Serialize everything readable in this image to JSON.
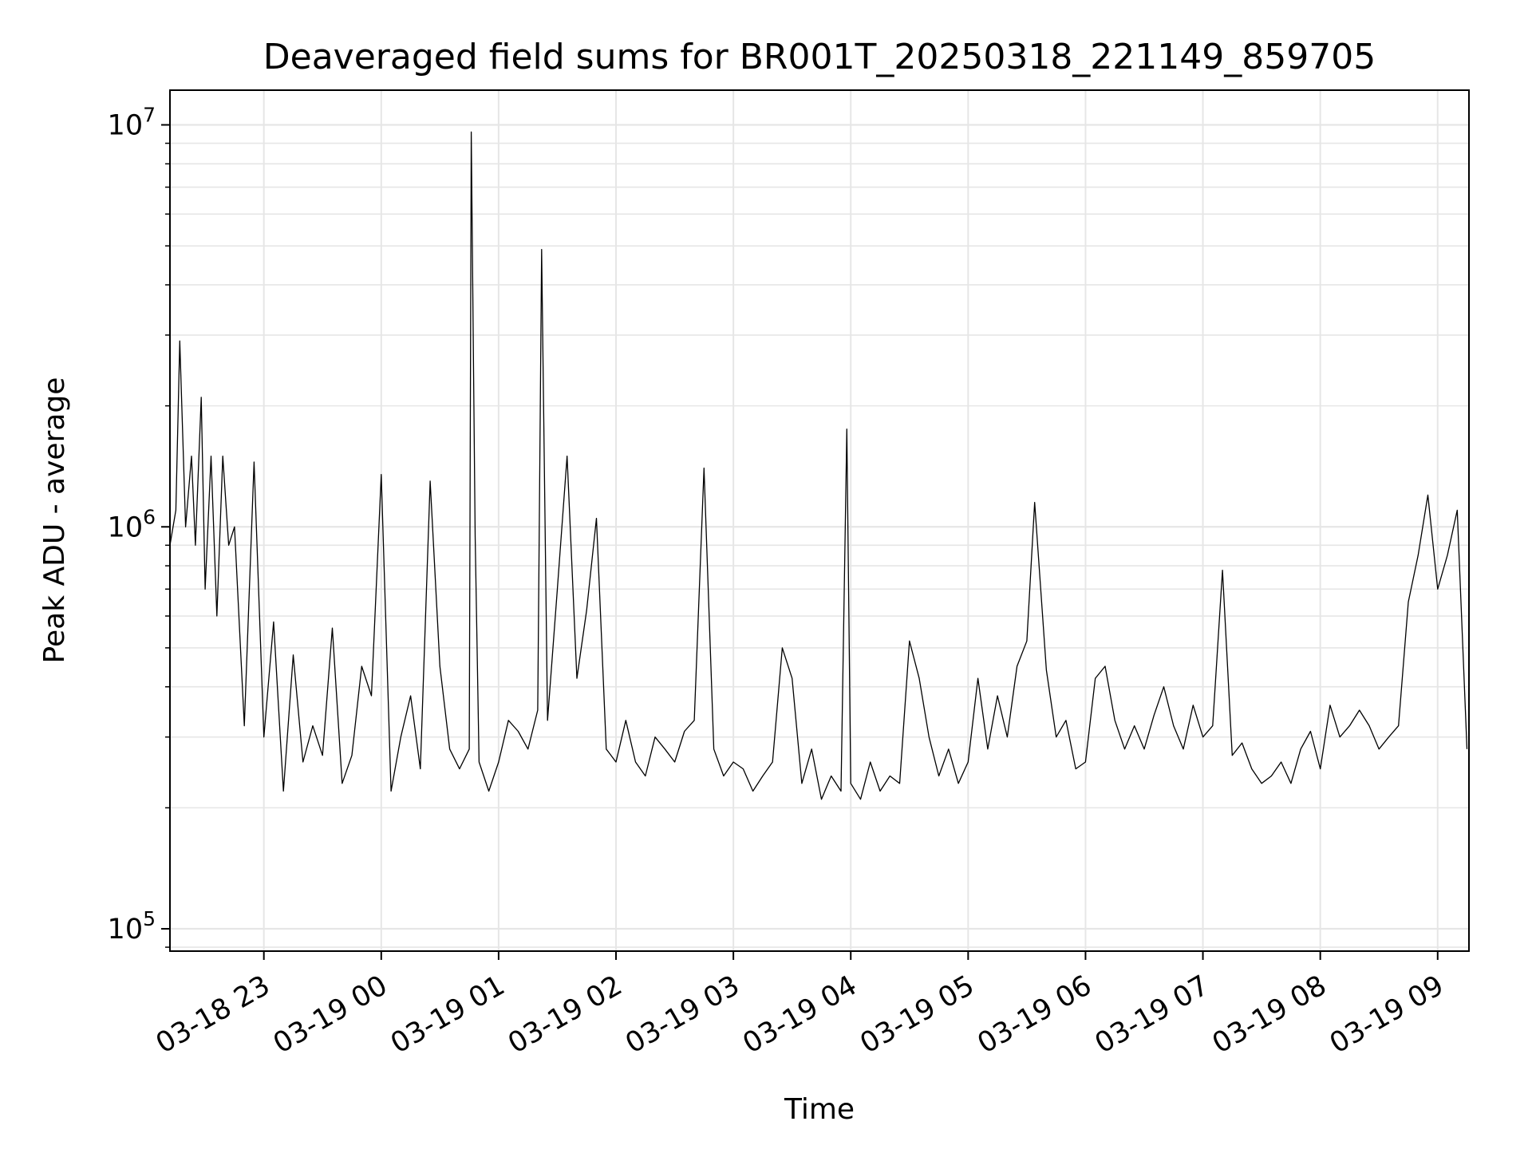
{
  "chart_data": {
    "type": "line",
    "title": "Deaveraged field sums for BR001T_20250318_221149_859705",
    "xlabel": "Time",
    "ylabel": "Peak ADU - average",
    "y_scale": "log",
    "ylim": [
      88000,
      12200000
    ],
    "xlim": [
      "2025-03-18 22:12",
      "2025-03-19 09:16"
    ],
    "x_ticks": [
      {
        "time": "2025-03-18 23:00",
        "label": "03-18 23"
      },
      {
        "time": "2025-03-19 00:00",
        "label": "03-19 00"
      },
      {
        "time": "2025-03-19 01:00",
        "label": "03-19 01"
      },
      {
        "time": "2025-03-19 02:00",
        "label": "03-19 02"
      },
      {
        "time": "2025-03-19 03:00",
        "label": "03-19 03"
      },
      {
        "time": "2025-03-19 04:00",
        "label": "03-19 04"
      },
      {
        "time": "2025-03-19 05:00",
        "label": "03-19 05"
      },
      {
        "time": "2025-03-19 06:00",
        "label": "03-19 06"
      },
      {
        "time": "2025-03-19 07:00",
        "label": "03-19 07"
      },
      {
        "time": "2025-03-19 08:00",
        "label": "03-19 08"
      },
      {
        "time": "2025-03-19 09:00",
        "label": "03-19 09"
      }
    ],
    "y_ticks": [
      {
        "value": 100000,
        "base": "10",
        "exp": "5"
      },
      {
        "value": 1000000,
        "base": "10",
        "exp": "6"
      },
      {
        "value": 10000000,
        "base": "10",
        "exp": "7"
      }
    ],
    "grid": true,
    "line_color": "#000000",
    "series": [
      {
        "x": [
          "2025-03-18 22:12",
          "2025-03-18 22:15",
          "2025-03-18 22:17",
          "2025-03-18 22:20",
          "2025-03-18 22:23",
          "2025-03-18 22:25",
          "2025-03-18 22:28",
          "2025-03-18 22:30",
          "2025-03-18 22:33",
          "2025-03-18 22:36",
          "2025-03-18 22:39",
          "2025-03-18 22:42",
          "2025-03-18 22:45",
          "2025-03-18 22:50",
          "2025-03-18 22:55",
          "2025-03-18 23:00",
          "2025-03-18 23:05",
          "2025-03-18 23:10",
          "2025-03-18 23:15",
          "2025-03-18 23:20",
          "2025-03-18 23:25",
          "2025-03-18 23:30",
          "2025-03-18 23:35",
          "2025-03-18 23:40",
          "2025-03-18 23:45",
          "2025-03-18 23:50",
          "2025-03-18 23:55",
          "2025-03-19 00:00",
          "2025-03-19 00:05",
          "2025-03-19 00:10",
          "2025-03-19 00:15",
          "2025-03-19 00:20",
          "2025-03-19 00:25",
          "2025-03-19 00:30",
          "2025-03-19 00:35",
          "2025-03-19 00:40",
          "2025-03-19 00:45",
          "2025-03-19 00:46",
          "2025-03-19 00:48",
          "2025-03-19 00:50",
          "2025-03-19 00:55",
          "2025-03-19 01:00",
          "2025-03-19 01:05",
          "2025-03-19 01:10",
          "2025-03-19 01:15",
          "2025-03-19 01:20",
          "2025-03-19 01:22",
          "2025-03-19 01:25",
          "2025-03-19 01:30",
          "2025-03-19 01:35",
          "2025-03-19 01:40",
          "2025-03-19 01:45",
          "2025-03-19 01:50",
          "2025-03-19 01:55",
          "2025-03-19 02:00",
          "2025-03-19 02:05",
          "2025-03-19 02:10",
          "2025-03-19 02:15",
          "2025-03-19 02:20",
          "2025-03-19 02:25",
          "2025-03-19 02:30",
          "2025-03-19 02:35",
          "2025-03-19 02:40",
          "2025-03-19 02:45",
          "2025-03-19 02:50",
          "2025-03-19 02:55",
          "2025-03-19 03:00",
          "2025-03-19 03:05",
          "2025-03-19 03:10",
          "2025-03-19 03:15",
          "2025-03-19 03:20",
          "2025-03-19 03:25",
          "2025-03-19 03:30",
          "2025-03-19 03:35",
          "2025-03-19 03:40",
          "2025-03-19 03:45",
          "2025-03-19 03:50",
          "2025-03-19 03:55",
          "2025-03-19 03:58",
          "2025-03-19 04:00",
          "2025-03-19 04:05",
          "2025-03-19 04:10",
          "2025-03-19 04:15",
          "2025-03-19 04:20",
          "2025-03-19 04:25",
          "2025-03-19 04:30",
          "2025-03-19 04:35",
          "2025-03-19 04:40",
          "2025-03-19 04:45",
          "2025-03-19 04:50",
          "2025-03-19 04:55",
          "2025-03-19 05:00",
          "2025-03-19 05:05",
          "2025-03-19 05:10",
          "2025-03-19 05:15",
          "2025-03-19 05:20",
          "2025-03-19 05:25",
          "2025-03-19 05:30",
          "2025-03-19 05:34",
          "2025-03-19 05:40",
          "2025-03-19 05:45",
          "2025-03-19 05:50",
          "2025-03-19 05:55",
          "2025-03-19 06:00",
          "2025-03-19 06:05",
          "2025-03-19 06:10",
          "2025-03-19 06:15",
          "2025-03-19 06:20",
          "2025-03-19 06:25",
          "2025-03-19 06:30",
          "2025-03-19 06:35",
          "2025-03-19 06:40",
          "2025-03-19 06:45",
          "2025-03-19 06:50",
          "2025-03-19 06:55",
          "2025-03-19 07:00",
          "2025-03-19 07:05",
          "2025-03-19 07:10",
          "2025-03-19 07:15",
          "2025-03-19 07:20",
          "2025-03-19 07:25",
          "2025-03-19 07:30",
          "2025-03-19 07:35",
          "2025-03-19 07:40",
          "2025-03-19 07:45",
          "2025-03-19 07:50",
          "2025-03-19 07:55",
          "2025-03-19 08:00",
          "2025-03-19 08:05",
          "2025-03-19 08:10",
          "2025-03-19 08:15",
          "2025-03-19 08:20",
          "2025-03-19 08:25",
          "2025-03-19 08:30",
          "2025-03-19 08:35",
          "2025-03-19 08:40",
          "2025-03-19 08:45",
          "2025-03-19 08:50",
          "2025-03-19 08:55",
          "2025-03-19 09:00",
          "2025-03-19 09:05",
          "2025-03-19 09:10",
          "2025-03-19 09:15"
        ],
        "y": [
          900000,
          1100000,
          2900000,
          1000000,
          1500000,
          900000,
          2100000,
          700000,
          1500000,
          600000,
          1500000,
          900000,
          1000000,
          320000,
          1450000,
          300000,
          580000,
          220000,
          480000,
          260000,
          320000,
          270000,
          560000,
          230000,
          270000,
          450000,
          380000,
          1350000,
          220000,
          300000,
          380000,
          250000,
          1300000,
          450000,
          280000,
          250000,
          280000,
          9600000,
          950000,
          260000,
          220000,
          260000,
          330000,
          310000,
          280000,
          350000,
          4900000,
          330000,
          700000,
          1500000,
          420000,
          620000,
          1050000,
          280000,
          260000,
          330000,
          260000,
          240000,
          300000,
          280000,
          260000,
          310000,
          330000,
          1400000,
          280000,
          240000,
          260000,
          250000,
          220000,
          240000,
          260000,
          500000,
          420000,
          230000,
          280000,
          210000,
          240000,
          220000,
          1750000,
          230000,
          210000,
          260000,
          220000,
          240000,
          230000,
          520000,
          420000,
          300000,
          240000,
          280000,
          230000,
          260000,
          420000,
          280000,
          380000,
          300000,
          450000,
          520000,
          1150000,
          440000,
          300000,
          330000,
          250000,
          260000,
          420000,
          450000,
          330000,
          280000,
          320000,
          280000,
          340000,
          400000,
          320000,
          280000,
          360000,
          300000,
          320000,
          780000,
          270000,
          290000,
          250000,
          230000,
          240000,
          260000,
          230000,
          280000,
          310000,
          250000,
          360000,
          300000,
          320000,
          350000,
          320000,
          280000,
          300000,
          320000,
          650000,
          850000,
          1200000,
          700000,
          850000,
          1100000,
          280000
        ]
      }
    ]
  }
}
